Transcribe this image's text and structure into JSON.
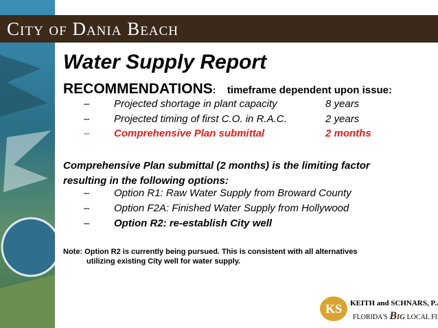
{
  "header": {
    "banner": "City of Dania Beach"
  },
  "slide": {
    "title": "Water Supply Report",
    "heading": "RECOMMENDATIONS",
    "heading_colon": ":",
    "heading_note": "timeframe dependent upon issue:",
    "bullet": "–",
    "items": [
      {
        "text": "Projected shortage in plant capacity",
        "time": "8 years"
      },
      {
        "text": "Projected timing of first C.O. in R.A.C.",
        "time": "2 years"
      },
      {
        "text": "Comprehensive Plan submittal",
        "time": "2 months"
      }
    ],
    "paragraph": [
      "Comprehensive Plan submittal (2 months) is the limiting factor",
      "resulting in the following options:"
    ],
    "options": [
      "Option R1: Raw Water Supply from Broward County",
      "Option F2A: Finished Water Supply from Hollywood",
      "Option R2: re-establish City well"
    ],
    "note": [
      "Note:  Option R2 is currently being pursued.  This is consistent with all alternatives",
      "utilizing existing City well for water supply."
    ]
  },
  "logo": {
    "initials": "KS",
    "name": "KEITH and SCHNARS, P.A.",
    "tagline_1": "FLORIDA'S",
    "tagline_big": "Big",
    "tagline_2": "LOCAL FIRM"
  }
}
